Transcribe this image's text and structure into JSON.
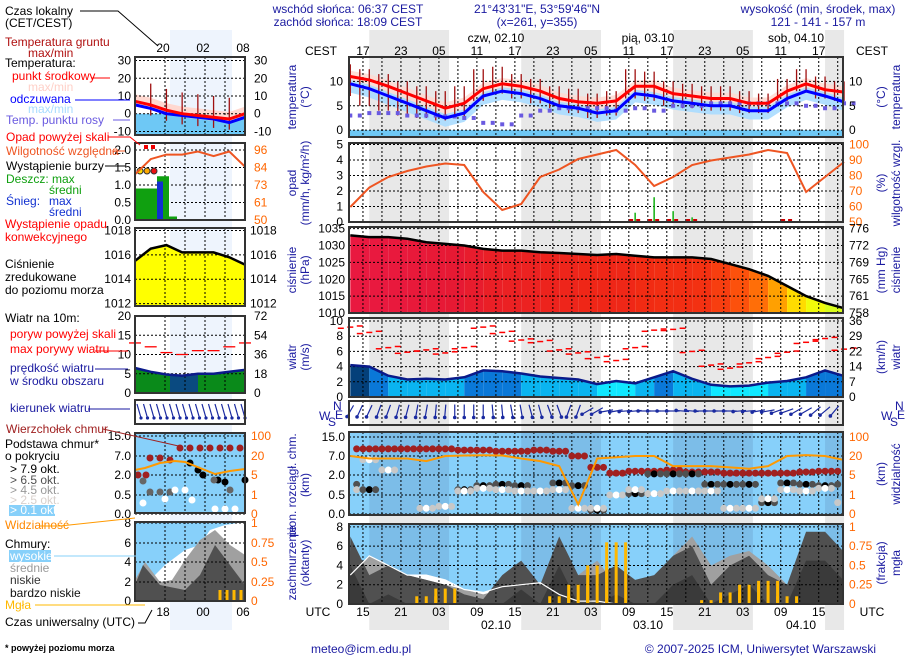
{
  "header": {
    "sunrise": "wschód słońca: 06:37 CEST",
    "sunset": "zachód słońca: 18:09 CEST",
    "coords": "21°43'31\"E, 53°59'46\"N",
    "grid": "(x=261,  y=355)",
    "elevation_label": "wysokość (min, środek, max)",
    "elevation": "121 - 141 - 157 m"
  },
  "time_axis": {
    "tz_top": "CEST",
    "tz_bottom": "UTC",
    "cest_hours": [
      "17",
      "23",
      "05",
      "11",
      "17",
      "23",
      "05",
      "11",
      "17",
      "23",
      "05",
      "11",
      "17"
    ],
    "utc_hours": [
      "15",
      "21",
      "03",
      "09",
      "15",
      "21",
      "03",
      "09",
      "15",
      "21",
      "03",
      "09",
      "15"
    ],
    "days_top": [
      "czw, 02.10",
      "pią, 03.10",
      "sob, 04.10"
    ],
    "days_bottom": [
      "02.10",
      "03.10",
      "04.10"
    ]
  },
  "legend": {
    "local_time": "Czas lokalny",
    "local_time_tz": "(CET/CEST)",
    "ground_temp": "Temperatura gruntu",
    "ground_temp_mm": "max/min",
    "temperature": "Temperatura:",
    "mid_point": "punkt środkowy",
    "mid_mm": "max/min",
    "feels_like": "odczuwana",
    "feels_mm": "max/min",
    "dew_point": "Temp. punktu rosy",
    "precip_over": "Opad powyżej skali",
    "humidity": "Wilgotność względna",
    "storm": "Wystąpienie burzy",
    "rain": "Deszcz: max",
    "rain_avg": "średni",
    "snow": "Śnieg:",
    "snow_max": "max",
    "snow_avg": "średni",
    "conv1": "Wystąpienie opadu",
    "conv2": "konwekcyjnego",
    "pressure1": "Ciśnienie",
    "pressure2": "zredukowane",
    "pressure3": "do poziomu morza",
    "wind10": "Wiatr na 10m:",
    "gust_over": "poryw powyżej skali",
    "gust_max": "max porywy wiatru",
    "wind_speed1": "prędkość wiatru",
    "wind_speed2": "w środku obszaru",
    "wind_dir": "kierunek wiatru",
    "cloud_top": "Wierzchołek chmur",
    "cloud_base1": "Podstawa chmur*",
    "cloud_base2": "o pokryciu",
    "okt79": "> 7.9 okt.",
    "okt65": "> 6.5 okt.",
    "okt45": "> 4.5 okt.",
    "okt25": "> 2.5 okt.",
    "okt01": "> 0.1 okt.",
    "visibility": "Widzialność",
    "clouds": "Chmury:",
    "high": "wysokie",
    "medium": "średnie",
    "low": "niskie",
    "very_low": "bardzo niskie",
    "fog": "Mgła",
    "utc": "Czas uniwersalny (UTC)",
    "footnote": "* powyżej poziomu morza",
    "mini_top_hours": [
      "20",
      "02",
      "08"
    ],
    "mini_bottom_hours": [
      "18",
      "00",
      "06"
    ]
  },
  "legend_example": {
    "temp_ticks": [
      "30",
      "20",
      "10",
      "0",
      "-10"
    ],
    "precip_ticks": [
      "2.0",
      "1.5",
      "1.0",
      "0.5",
      "0.0"
    ],
    "humidity_ticks": [
      "96",
      "84",
      "73",
      "61",
      "50"
    ],
    "pressure_ticks": [
      "1018",
      "1016",
      "1014",
      "1012"
    ],
    "wind_ticks": [
      "20",
      "15",
      "10",
      "5",
      "0"
    ],
    "wind_kmh_ticks": [
      "72",
      "54",
      "36",
      "18",
      "0"
    ],
    "cloud_ticks": [
      "15.0",
      "7.0",
      "2.0",
      "0.5",
      "0.0"
    ],
    "vis_ticks": [
      "100",
      "20",
      "5",
      "1",
      "0"
    ],
    "cover_ticks": [
      "8",
      "6",
      "4",
      "2",
      "0"
    ],
    "fog_ticks": [
      "1",
      "0.75",
      "0.5",
      "0.25",
      "0"
    ],
    "temp": [
      7,
      5,
      2,
      0,
      -1,
      -2,
      -3,
      0
    ],
    "feels": [
      5,
      3,
      0,
      -1,
      -2,
      -3,
      -5,
      -2
    ],
    "humidity": [
      80,
      90,
      93,
      93,
      95,
      92,
      95,
      85
    ],
    "pressure": [
      1015.5,
      1016.5,
      1016.8,
      1016.2,
      1016.2,
      1016.2,
      1015.8,
      1015.2
    ],
    "wind": [
      6.5,
      5.5,
      4.8,
      4.5,
      5,
      5,
      5.5,
      6
    ],
    "gust": [
      13,
      12,
      10.5,
      10,
      11,
      11,
      12,
      13
    ]
  },
  "chart_data": [
    {
      "type": "line",
      "panel": "temperature",
      "ylabel": "temperatura",
      "yunit": "(°C)",
      "yticks": [
        "10",
        "5",
        "0"
      ],
      "y2ticks": [
        "10",
        "5",
        "0"
      ],
      "x": [
        "01.10 13:00",
        "01.10 16:00",
        "01.10 19:00",
        "01.10 22:00",
        "02.10 01:00",
        "02.10 04:00",
        "02.10 07:00",
        "02.10 10:00",
        "02.10 13:00",
        "02.10 16:00",
        "02.10 19:00",
        "02.10 22:00",
        "03.10 01:00",
        "03.10 04:00",
        "03.10 07:00",
        "03.10 10:00",
        "03.10 13:00",
        "03.10 16:00",
        "03.10 19:00",
        "03.10 22:00",
        "04.10 01:00",
        "04.10 04:00",
        "04.10 07:00",
        "04.10 10:00",
        "04.10 13:00",
        "04.10 16:00",
        "04.10 19:00"
      ],
      "series": [
        {
          "key": "temp",
          "values": [
            11,
            10.3,
            9,
            7.5,
            6,
            4.5,
            5.5,
            8.5,
            9.5,
            9,
            8,
            6.5,
            5.8,
            5.5,
            6,
            9,
            9,
            7.5,
            7,
            6.5,
            6.5,
            5.5,
            5.5,
            8,
            9.5,
            8.3,
            7.8
          ],
          "color": "#ff0000"
        },
        {
          "key": "feels",
          "values": [
            9.5,
            8.5,
            7,
            5.5,
            4,
            2.5,
            3.5,
            7,
            8,
            7.5,
            6.5,
            5,
            4.5,
            3.5,
            4,
            7.5,
            7,
            6,
            5.5,
            5,
            5,
            4,
            4,
            6.5,
            8,
            7,
            5.8
          ],
          "color": "#0000ff"
        },
        {
          "key": "dew_point",
          "values": [
            3,
            3.5,
            3.5,
            3,
            3,
            2.8,
            2.5,
            1.5,
            1.2,
            3,
            4,
            4.5,
            4.5,
            4.5,
            4,
            4.5,
            4,
            5,
            5,
            5.5,
            5.5,
            5.5,
            5.5,
            5.5,
            5,
            4.5,
            5.5
          ],
          "color": "#6a5ae0"
        },
        {
          "key": "ground_max",
          "values": [
            13.5,
            12.5,
            11.5,
            10,
            9,
            8,
            9,
            12.5,
            13,
            11.5,
            10.5,
            9,
            8.5,
            7.5,
            8,
            12.5,
            12,
            10,
            9.5,
            9,
            9,
            8,
            7.5,
            10.5,
            12.5,
            11,
            10
          ],
          "color": "#a01010"
        },
        {
          "key": "ground_min",
          "values": [
            7,
            5,
            4,
            3,
            2.5,
            2,
            2.5,
            6,
            7.5,
            6.5,
            5.5,
            4.5,
            3.5,
            2.5,
            3,
            6.5,
            6,
            5,
            4.5,
            4,
            4,
            3.5,
            3.5,
            6,
            8,
            6.5,
            6
          ],
          "color": "#a01010"
        }
      ]
    },
    {
      "type": "bar+line",
      "panel": "precipitation",
      "ylabel": "opad",
      "yunit": "(mm/h, kg/m²/h)",
      "y2label": "wilgotność wzgl.",
      "y2unit": "(%)",
      "yticks": [
        "5",
        "4",
        "3",
        "2",
        "1",
        "0"
      ],
      "y2ticks": [
        "100",
        "90",
        "80",
        "70",
        "60",
        "50"
      ],
      "humidity": [
        60,
        73,
        80,
        84,
        87,
        89,
        88,
        70,
        58,
        62,
        80,
        85,
        92,
        95,
        98,
        88,
        74,
        80,
        88,
        91,
        93,
        95,
        98,
        96,
        70,
        80,
        90
      ],
      "precip": [
        0,
        0,
        0,
        0,
        0,
        0,
        0,
        0,
        0,
        0,
        0,
        0.1,
        0,
        0,
        0,
        0.6,
        1.6,
        0.7,
        0.3,
        0,
        0,
        0,
        0,
        0,
        0,
        0,
        0
      ],
      "convective": [
        0,
        0,
        0,
        0,
        0,
        0,
        0,
        0,
        0,
        0,
        0,
        0,
        0,
        0,
        0,
        1,
        1,
        1,
        1,
        0,
        0,
        0,
        0,
        1,
        0,
        0,
        0
      ]
    },
    {
      "type": "area",
      "panel": "pressure",
      "ylabel": "ciśnienie",
      "yunit": "(hPa)",
      "y2label": "ciśnienie",
      "y2unit": "(mm Hg)",
      "yticks": [
        "1035",
        "1030",
        "1025",
        "1020",
        "1015",
        "1010"
      ],
      "y2ticks": [
        "776",
        "772",
        "769",
        "765",
        "761",
        "758"
      ],
      "values": [
        1033,
        1032.5,
        1032.5,
        1032,
        1031,
        1030.5,
        1030,
        1029,
        1028.5,
        1028.5,
        1028,
        1027.8,
        1027.5,
        1027.2,
        1027.5,
        1027,
        1026.5,
        1026.5,
        1026.5,
        1026,
        1024.5,
        1023,
        1021,
        1018,
        1015,
        1013,
        1011.5
      ]
    },
    {
      "type": "area",
      "panel": "wind",
      "ylabel": "wiatr",
      "yunit": "(m/s)",
      "y2label": "wiatr",
      "y2unit": "(km/h)",
      "yticks": [
        "10",
        "8",
        "6",
        "4",
        "2",
        "0"
      ],
      "y2ticks": [
        "36",
        "29",
        "22",
        "14",
        "7",
        "0"
      ],
      "speed": [
        4.2,
        4.0,
        2.8,
        2.3,
        2.4,
        2.3,
        2.6,
        3.5,
        3.4,
        3.1,
        2.7,
        2.5,
        2.3,
        1.7,
        2.1,
        1.8,
        2.6,
        3.4,
        2.4,
        1.6,
        1.4,
        1.5,
        1.9,
        2.1,
        2.6,
        3.5,
        2.8
      ],
      "gust": [
        9.2,
        8.5,
        6.5,
        5.9,
        6.2,
        5.8,
        6.5,
        9.2,
        8.5,
        7.5,
        7.3,
        6.2,
        5.8,
        5.2,
        4.8,
        6.5,
        8.8,
        8.9,
        6,
        4.2,
        3.8,
        4.5,
        5.2,
        5.9,
        7.2,
        7.7,
        6.3
      ]
    },
    {
      "type": "vector",
      "panel": "wind_direction",
      "compass": [
        "N",
        "W",
        "E",
        "S"
      ],
      "direction_deg": [
        30,
        25,
        20,
        15,
        10,
        5,
        0,
        0,
        355,
        350,
        345,
        340,
        20,
        60,
        80,
        85,
        90,
        90,
        95,
        90,
        90,
        85,
        80,
        70,
        60,
        50,
        40
      ]
    },
    {
      "type": "scatter+line",
      "panel": "clouds",
      "ylabel": "pion. rozciągł. chm.",
      "yunit": "(km)",
      "y2label": "widzialność",
      "y2unit": "(km)",
      "yticks": [
        "15.0",
        "7.0",
        "2.0",
        "0.5",
        "0.0"
      ],
      "y2ticks": [
        "100",
        "20",
        "5",
        "1",
        "0"
      ],
      "cloud_top_km": [
        10,
        10,
        10,
        10,
        10,
        10,
        9.5,
        9.5,
        9,
        9,
        9.5,
        9,
        7,
        4,
        2.5,
        3,
        3,
        3.3,
        2.8,
        2.8,
        2.5,
        2.5,
        2.5,
        2.5,
        2.8,
        3,
        3
      ],
      "base_dense_km": [
        1.3,
        0.9,
        null,
        null,
        null,
        null,
        0.9,
        1.2,
        1.3,
        1.2,
        null,
        1.4,
        1.2,
        0.1,
        null,
        0.6,
        2.3,
        2.3,
        2.3,
        1.3,
        1.3,
        1.3,
        0.3,
        1.4,
        1.3,
        1.2,
        1.3
      ],
      "base_sparse_km": [
        0.9,
        6,
        3.3,
        null,
        0.15,
        0.2,
        0.8,
        1.0,
        0.9,
        0.8,
        0.8,
        0.9,
        0.15,
        0.15,
        0.5,
        0.9,
        0.6,
        0.8,
        0.8,
        0.8,
        0.15,
        0.15,
        0.4,
        0.9,
        0.8,
        1.0,
        0.3
      ],
      "visibility_km": [
        20,
        18,
        18,
        18,
        16,
        20,
        22,
        23,
        22,
        18,
        16,
        12,
        0.5,
        18,
        19,
        20,
        20,
        12,
        12,
        12,
        11,
        10,
        12,
        20,
        24,
        20,
        17
      ]
    },
    {
      "type": "area+bar",
      "panel": "cloud_cover",
      "ylabel": "zachmurzenie",
      "yunit": "(oktanty)",
      "y2label": "mgła",
      "y2unit": "(frakcja)",
      "yticks": [
        "8",
        "6",
        "4",
        "2",
        "0"
      ],
      "y2ticks": [
        "1",
        "0.75",
        "0.5",
        "0.25",
        "0"
      ],
      "low": [
        7,
        3,
        4,
        3,
        2.5,
        2,
        1,
        0.5,
        3,
        4.5,
        2,
        7,
        3,
        3,
        4,
        2.5,
        3,
        5,
        6,
        2,
        4,
        5,
        3,
        2,
        7.5,
        7.5,
        5.5
      ],
      "medium": [
        3,
        5,
        4,
        3,
        2.5,
        2,
        1.5,
        1,
        1.5,
        2,
        2,
        2,
        3,
        4.5,
        2,
        2,
        2,
        5,
        7,
        4,
        5,
        5.5,
        4,
        2,
        2,
        3,
        3
      ],
      "high_line": [
        3,
        5,
        4,
        3,
        3,
        2.5,
        1.5,
        1.2,
        1.8,
        2,
        2.2,
        1,
        0.3,
        0.3,
        0,
        0,
        0,
        0,
        0,
        0,
        0,
        0,
        0,
        0,
        0,
        0,
        0
      ],
      "fog": [
        0,
        0,
        0,
        0,
        0.1,
        0.2,
        0,
        0,
        0,
        0,
        0,
        0.1,
        0.25,
        0.5,
        0.8,
        0,
        0,
        0,
        0,
        0.05,
        0.15,
        0.25,
        0.3,
        0.1,
        0,
        0,
        0
      ]
    }
  ],
  "colors": {
    "title": "#1a1aa0",
    "temp": "#ff0000",
    "feels": "#0000ff",
    "humidity": "#ee5522",
    "visibility": "#ff9900",
    "fog": "#ffb800",
    "cloud_bg": "#87d0fa"
  },
  "footer": {
    "email": "meteo@icm.edu.pl",
    "copyright": "© 2007-2025 ICM, Uniwersytet Warszawski"
  }
}
